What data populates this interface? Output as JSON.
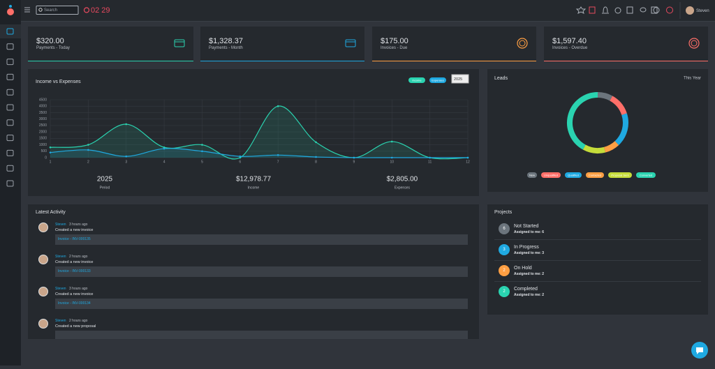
{
  "topbar": {
    "search_placeholder": "Search",
    "timer": "02 29",
    "user": "Steven"
  },
  "stats": [
    {
      "value": "$320.00",
      "label": "Payments - Today",
      "color": "#2ad3b0"
    },
    {
      "value": "$1,328.37",
      "label": "Payments - Month",
      "color": "#1fa9e1"
    },
    {
      "value": "$175.00",
      "label": "Invoices - Due",
      "color": "#ff9f43"
    },
    {
      "value": "$1,597.40",
      "label": "Invoices - Overdue",
      "color": "#ff6f69"
    }
  ],
  "income_panel": {
    "year_select": "2025",
    "summary": [
      {
        "value": "2025",
        "label": "Period"
      },
      {
        "value": "$12,978.77",
        "label": "Income"
      },
      {
        "value": "$2,805.00",
        "label": "Expenses"
      }
    ]
  },
  "chart_data": [
    {
      "type": "line",
      "title": "Income vs Expenses",
      "x": [
        1,
        2,
        3,
        4,
        5,
        6,
        7,
        8,
        9,
        10,
        11,
        12
      ],
      "series": [
        {
          "name": "Income",
          "color": "#2ad3b0",
          "values": [
            800,
            1000,
            2600,
            800,
            1000,
            0,
            4000,
            1200,
            0,
            1250,
            0,
            0
          ]
        },
        {
          "name": "Expenses",
          "color": "#1fa9e1",
          "values": [
            400,
            600,
            100,
            700,
            500,
            100,
            200,
            50,
            0,
            0,
            0,
            0
          ]
        }
      ],
      "xlim": [
        1,
        12
      ],
      "xticks": [
        1,
        2,
        3,
        4,
        5,
        6,
        7,
        8,
        9,
        10,
        11,
        12
      ],
      "ylim": [
        0,
        4500
      ],
      "yticks": [
        0,
        500,
        1000,
        1500,
        2000,
        2500,
        3000,
        3500,
        4000,
        4500
      ],
      "grid": true
    },
    {
      "type": "pie",
      "title": "Leads",
      "subtitle": "This Year",
      "categories": [
        "New",
        "Unqualified",
        "Qualified",
        "Contacted",
        "Proposal Sent",
        "Converted"
      ],
      "values": [
        8,
        12,
        18,
        8,
        12,
        42
      ],
      "colors": [
        "#6c757d",
        "#ff6f69",
        "#1fa9e1",
        "#ff9f43",
        "#c5dc3a",
        "#2ad3b0"
      ]
    }
  ],
  "activity": {
    "title": "Latest Activity",
    "items": [
      {
        "user": "Steven",
        "time": "3 hours ago",
        "text": "Created a new invoice",
        "link": "Invoice - INV-000135"
      },
      {
        "user": "Steven",
        "time": "2 hours ago",
        "text": "Created a new invoice",
        "link": "Invoice - INV-000133"
      },
      {
        "user": "Steven",
        "time": "3 hours ago",
        "text": "Created a new invoice",
        "link": "Invoice - INV-000134"
      },
      {
        "user": "Steven",
        "time": "2 hours ago",
        "text": "Created a new proposal",
        "link": ""
      }
    ]
  },
  "projects": {
    "title": "Projects",
    "items": [
      {
        "name": "Not Started",
        "assigned_label": "Assigned to me:",
        "count": 6,
        "color": "#6c757d"
      },
      {
        "name": "In Progress",
        "assigned_label": "Assigned to me:",
        "count": 3,
        "color": "#1fa9e1"
      },
      {
        "name": "On Hold",
        "assigned_label": "Assigned to me:",
        "count": 2,
        "color": "#ff9f43"
      },
      {
        "name": "Completed",
        "assigned_label": "Assigned to me:",
        "count": 2,
        "color": "#2ad3b0"
      }
    ]
  }
}
